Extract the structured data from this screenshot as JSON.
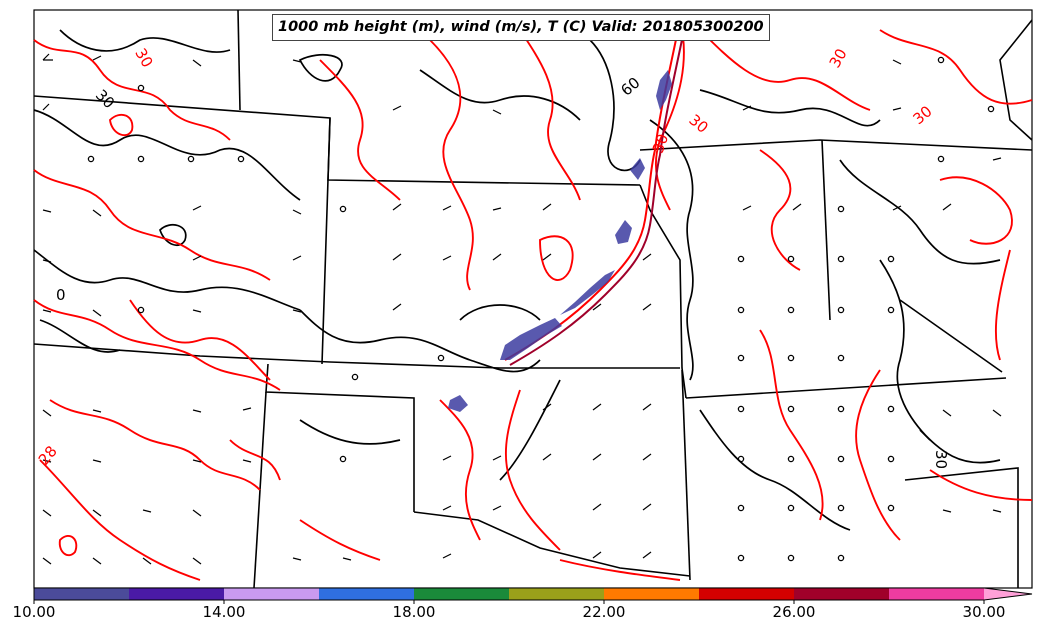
{
  "title": "1000 mb height (m), wind (m/s), T (C) Valid: 201805300200",
  "contour_labels": {
    "height": [
      "30",
      "0",
      "60",
      "30"
    ],
    "temperature": [
      "30",
      "30",
      "30",
      "30",
      "28",
      "30"
    ]
  },
  "colorbar": {
    "ticks": [
      "10.00",
      "14.00",
      "18.00",
      "22.00",
      "26.00",
      "30.00"
    ],
    "colors": [
      "#4b4b9a",
      "#4a1aa6",
      "#c99af0",
      "#2f6fe0",
      "#1a8a3a",
      "#9aa01a",
      "#ff7a00",
      "#d40000",
      "#a0002a",
      "#ee3ca0",
      "#ffa0d8"
    ]
  },
  "colors": {
    "temperature_contour": "#ff0000",
    "height_contour": "#000000",
    "borders": "#000000",
    "shade": "#3c3ca0"
  }
}
